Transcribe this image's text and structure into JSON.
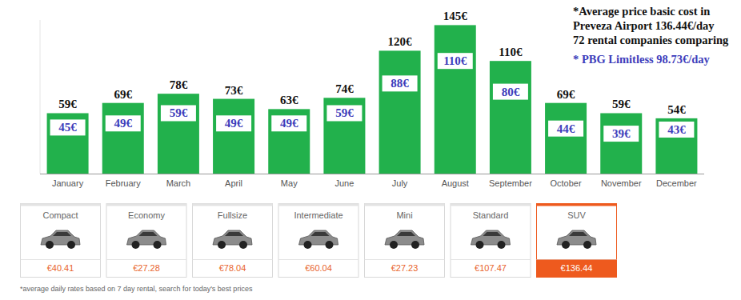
{
  "chart_data": {
    "type": "bar",
    "categories": [
      "January",
      "February",
      "March",
      "April",
      "May",
      "June",
      "July",
      "August",
      "September",
      "October",
      "November",
      "December"
    ],
    "series": [
      {
        "color": "#22b14c",
        "values": [
          59,
          69,
          78,
          73,
          63,
          74,
          120,
          145,
          110,
          69,
          59,
          54
        ],
        "value_labels": [
          "59€",
          "69€",
          "78€",
          "73€",
          "63€",
          "74€",
          "120€",
          "145€",
          "110€",
          "69€",
          "59€",
          "54€"
        ]
      },
      {
        "color": "#3d3dbb",
        "values": [
          45,
          49,
          59,
          49,
          49,
          59,
          88,
          110,
          80,
          44,
          39,
          43
        ],
        "value_labels": [
          "45€",
          "49€",
          "59€",
          "49€",
          "49€",
          "59€",
          "88€",
          "110€",
          "80€",
          "44€",
          "39€",
          "43€"
        ]
      }
    ],
    "ylim": [
      0,
      150
    ],
    "yticks": [],
    "grid": false,
    "data_labels": true,
    "tick_labels": "x",
    "annotations": [
      {
        "lines": [
          "*Average price basic cost in",
          "Preveza Airport 136.44€/day",
          "72 rental companies comparing"
        ],
        "color": "#111111"
      },
      {
        "lines": [
          "* PBG Limitless 98.73€/day"
        ],
        "color": "#3d3dbb"
      }
    ]
  },
  "cards": [
    {
      "label": "Compact",
      "price": "€40.41"
    },
    {
      "label": "Economy",
      "price": "€27.28"
    },
    {
      "label": "Fullsize",
      "price": "€78.04"
    },
    {
      "label": "Intermediate",
      "price": "€60.04"
    },
    {
      "label": "Mini",
      "price": "€27.23"
    },
    {
      "label": "Standard",
      "price": "€107.47"
    },
    {
      "label": "SUV",
      "price": "€136.44",
      "selected": true
    }
  ],
  "footnote": "*average daily rates based on 7 day rental, search for today's best prices"
}
